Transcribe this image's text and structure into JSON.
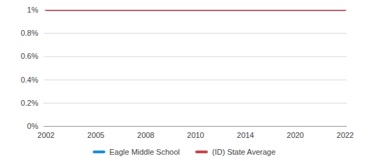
{
  "chart_data": {
    "type": "line",
    "categories": [
      "2002",
      "2005",
      "2008",
      "2010",
      "2014",
      "2020",
      "2022"
    ],
    "series": [
      {
        "name": "Eagle Middle School",
        "color": "#1f8fcf",
        "values": [
          1,
          1,
          1,
          1,
          1,
          1,
          1
        ]
      },
      {
        "name": "(ID) State Average",
        "color": "#c8454d",
        "values": [
          1,
          1,
          1,
          1,
          1,
          1,
          1
        ]
      }
    ],
    "ylim": [
      0,
      1
    ],
    "yticks": [
      {
        "value": 0,
        "label": "0%"
      },
      {
        "value": 0.2,
        "label": "0.2%"
      },
      {
        "value": 0.4,
        "label": "0.4%"
      },
      {
        "value": 0.6,
        "label": "0.6%"
      },
      {
        "value": 0.8,
        "label": "0.8%"
      },
      {
        "value": 1,
        "label": "1%"
      }
    ],
    "grid": true,
    "legend": "bottom"
  }
}
